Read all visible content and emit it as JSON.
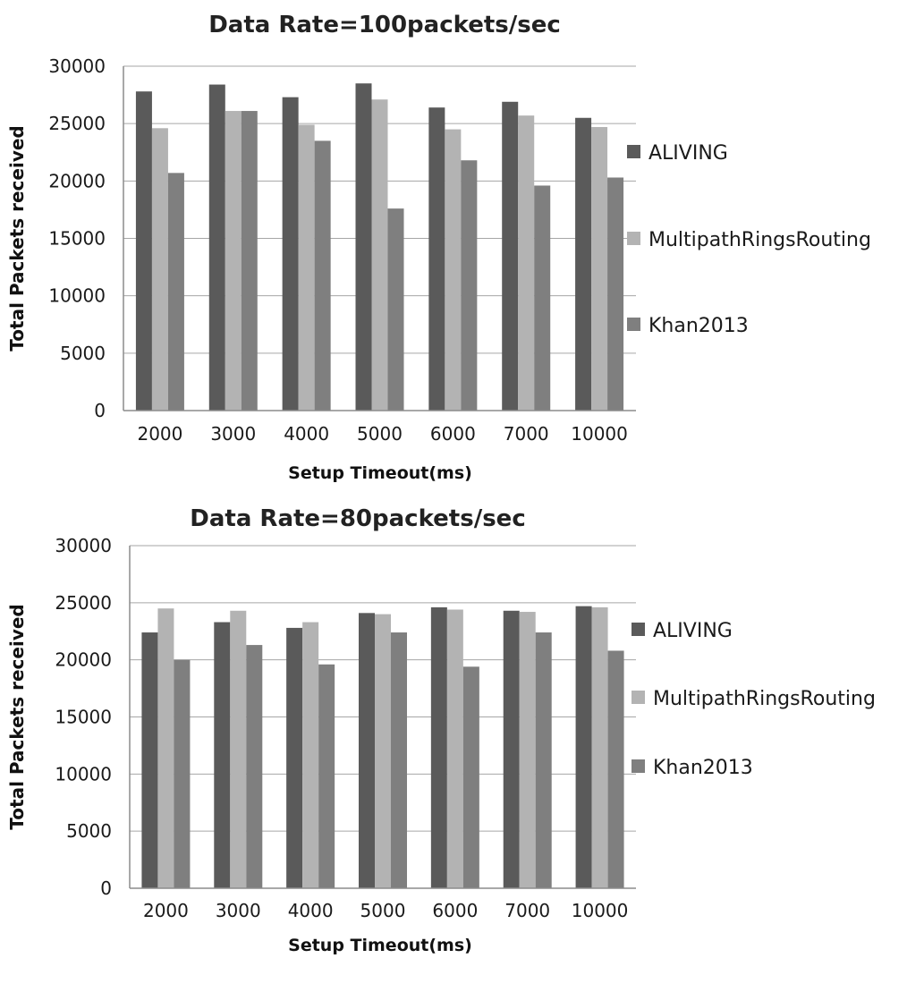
{
  "chart_data": [
    {
      "type": "bar",
      "title": "Data Rate=100packets/sec",
      "xlabel": "Setup Timeout(ms)",
      "ylabel": "Total Packets received",
      "ylim": [
        0,
        30000
      ],
      "yticks": [
        0,
        5000,
        10000,
        15000,
        20000,
        25000,
        30000
      ],
      "grid": true,
      "legend_position": "right",
      "categories": [
        "2000",
        "3000",
        "4000",
        "5000",
        "6000",
        "7000",
        "10000"
      ],
      "series": [
        {
          "name": "ALIVING",
          "color": "#5a5a5a",
          "values": [
            27800,
            28400,
            27300,
            28500,
            26400,
            26900,
            25500
          ]
        },
        {
          "name": "MultipathRingsRouting",
          "color": "#b3b3b3",
          "values": [
            24600,
            26100,
            24900,
            27100,
            24500,
            25700,
            24700
          ]
        },
        {
          "name": "Khan2013",
          "color": "#7f7f7f",
          "values": [
            20700,
            26100,
            23500,
            17600,
            21800,
            19600,
            20300
          ]
        }
      ]
    },
    {
      "type": "bar",
      "title": "Data Rate=80packets/sec",
      "xlabel": "Setup Timeout(ms)",
      "ylabel": "Total Packets received",
      "ylim": [
        0,
        30000
      ],
      "yticks": [
        0,
        5000,
        10000,
        15000,
        20000,
        25000,
        30000
      ],
      "grid": true,
      "legend_position": "right",
      "categories": [
        "2000",
        "3000",
        "4000",
        "5000",
        "6000",
        "7000",
        "10000"
      ],
      "series": [
        {
          "name": "ALIVING",
          "color": "#5a5a5a",
          "values": [
            22400,
            23300,
            22800,
            24100,
            24600,
            24300,
            24700
          ]
        },
        {
          "name": "MultipathRingsRouting",
          "color": "#b3b3b3",
          "values": [
            24500,
            24300,
            23300,
            24000,
            24400,
            24200,
            24600
          ]
        },
        {
          "name": "Khan2013",
          "color": "#7f7f7f",
          "values": [
            20000,
            21300,
            19600,
            22400,
            19400,
            22400,
            20800
          ]
        }
      ]
    }
  ]
}
